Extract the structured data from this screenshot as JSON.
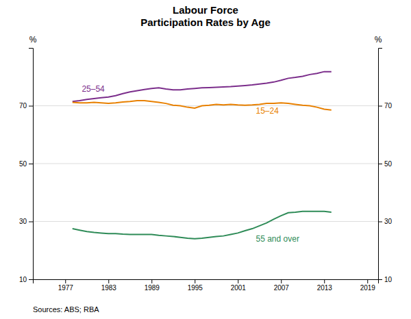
{
  "chart_data": {
    "type": "line",
    "title": "Labour Force\nParticipation Rates by Age",
    "ylabel": "%",
    "y2label": "%",
    "note": "Sources:  ABS; RBA",
    "x": [
      1978,
      1979,
      1980,
      1981,
      1982,
      1983,
      1984,
      1985,
      1986,
      1987,
      1988,
      1989,
      1990,
      1991,
      1992,
      1993,
      1994,
      1995,
      1996,
      1997,
      1998,
      1999,
      2000,
      2001,
      2002,
      2003,
      2004,
      2005,
      2006,
      2007,
      2008,
      2009,
      2010,
      2011,
      2012,
      2013,
      2014
    ],
    "series": [
      {
        "name": "25–54",
        "color": "#7B2D8B",
        "values": [
          71.5,
          71.8,
          72.2,
          72.5,
          72.8,
          73.0,
          73.5,
          74.2,
          74.8,
          75.2,
          75.6,
          76.0,
          76.2,
          75.8,
          75.5,
          75.5,
          75.8,
          76.0,
          76.2,
          76.3,
          76.4,
          76.5,
          76.6,
          76.8,
          77.0,
          77.2,
          77.5,
          77.8,
          78.2,
          78.8,
          79.5,
          79.8,
          80.2,
          80.8,
          81.2,
          81.8,
          81.8
        ]
      },
      {
        "name": "15–24",
        "color": "#E88000",
        "values": [
          71.2,
          71.0,
          71.0,
          71.2,
          71.0,
          70.8,
          71.0,
          71.3,
          71.5,
          71.8,
          71.8,
          71.5,
          71.2,
          70.8,
          70.2,
          70.0,
          69.5,
          69.2,
          70.0,
          70.2,
          70.5,
          70.3,
          70.5,
          70.3,
          70.2,
          70.3,
          70.5,
          70.8,
          70.8,
          71.0,
          70.8,
          70.5,
          70.2,
          70.0,
          69.5,
          68.8,
          68.5
        ]
      },
      {
        "name": "55 and over",
        "color": "#2E8B57",
        "values": [
          27.5,
          27.0,
          26.5,
          26.2,
          26.0,
          25.8,
          25.8,
          25.6,
          25.5,
          25.5,
          25.5,
          25.5,
          25.2,
          25.0,
          24.8,
          24.5,
          24.2,
          24.0,
          24.2,
          24.5,
          24.8,
          25.0,
          25.5,
          26.0,
          26.8,
          27.5,
          28.5,
          29.5,
          30.8,
          32.0,
          33.0,
          33.2,
          33.5,
          33.5,
          33.5,
          33.5,
          33.2
        ]
      }
    ],
    "annotations": [
      {
        "text": "25–54",
        "x": 1979.3,
        "y": 74.8,
        "color": "#7B2D8B"
      },
      {
        "text": "15–24",
        "x": 2003.5,
        "y": 67.2,
        "color": "#E88000"
      },
      {
        "text": "55 and over",
        "x": 2003.5,
        "y": 23.0,
        "color": "#2E8B57"
      }
    ],
    "xlim": [
      1972.5,
      2020.5
    ],
    "xticks": [
      1977,
      1983,
      1989,
      1995,
      2001,
      2007,
      2013,
      2019
    ],
    "ylim": [
      10,
      90
    ],
    "yticks": [
      10,
      30,
      50,
      70
    ],
    "y2lim": [
      10,
      90
    ],
    "y2ticks": [
      10,
      30,
      50,
      70
    ],
    "grid": true
  }
}
